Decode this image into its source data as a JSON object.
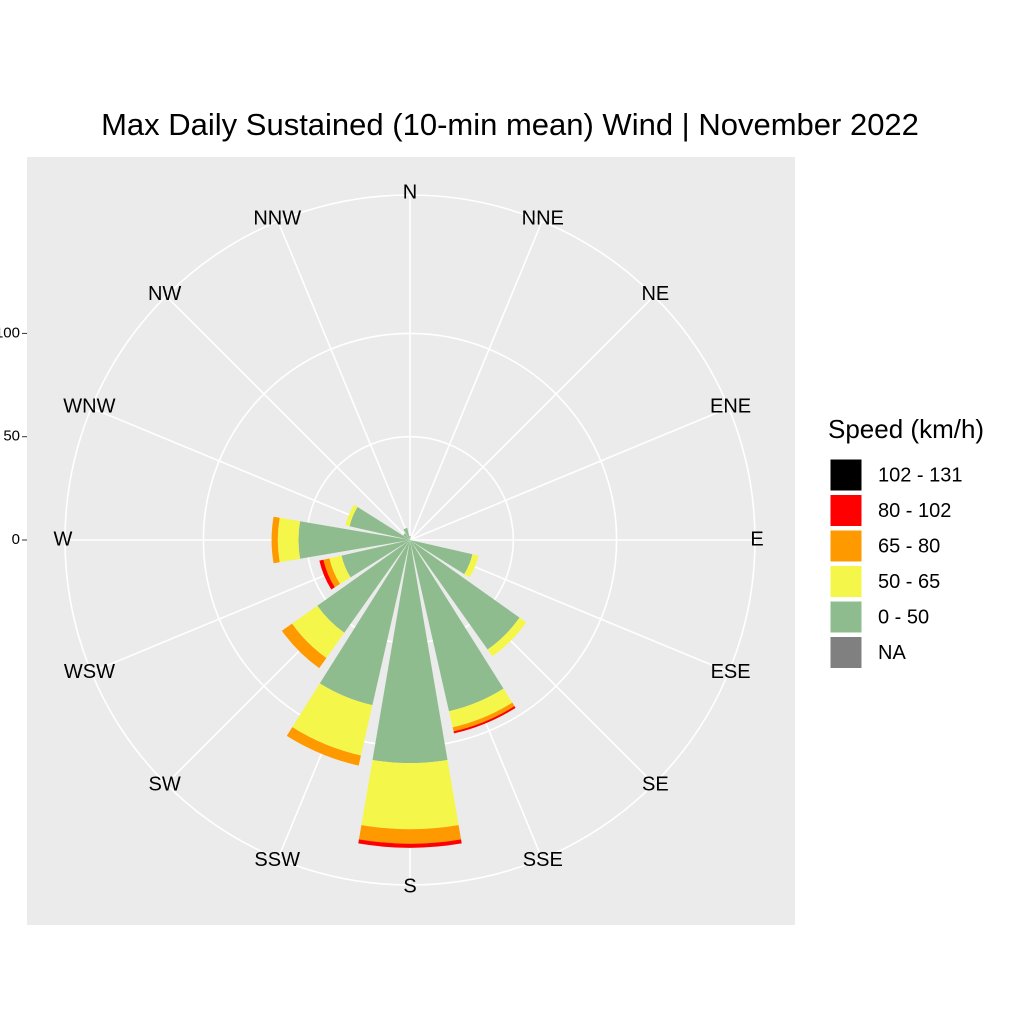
{
  "chart_data": {
    "type": "rose",
    "title": "Max Daily Sustained (10-min mean) Wind | November 2022",
    "legend_title": "Speed (km/h)",
    "categories": [
      "N",
      "NNE",
      "NE",
      "ENE",
      "E",
      "ESE",
      "SE",
      "SSE",
      "S",
      "SSW",
      "SW",
      "WSW",
      "W",
      "WNW",
      "NW",
      "NNW"
    ],
    "series": [
      {
        "name": "102 - 131",
        "color": "#000000",
        "values": [
          0,
          0,
          0,
          0,
          0,
          0,
          0,
          0,
          0,
          0,
          0,
          0,
          0,
          0,
          0,
          0
        ]
      },
      {
        "name": "80 - 102",
        "color": "#ff0000",
        "values": [
          0,
          0,
          0,
          0,
          0,
          0,
          0,
          1,
          2,
          0,
          0,
          2,
          0,
          0,
          0,
          0
        ]
      },
      {
        "name": "65 - 80",
        "color": "#ff9900",
        "values": [
          0,
          0,
          0,
          0,
          0,
          0,
          0,
          2,
          7,
          5,
          6,
          3,
          3,
          0,
          0,
          0
        ]
      },
      {
        "name": "50 - 65",
        "color": "#f4f74a",
        "values": [
          0,
          0,
          0,
          0,
          0,
          3,
          4,
          8,
          32,
          25,
          15,
          6,
          10,
          2,
          0,
          0
        ]
      },
      {
        "name": "0 - 50",
        "color": "#8fbc8f",
        "values": [
          2,
          0,
          0,
          0,
          0,
          31,
          65,
          85,
          108,
          82,
          55,
          34,
          54,
          30,
          4,
          6
        ]
      },
      {
        "name": "NA",
        "color": "#808080",
        "values": [
          0,
          0,
          0,
          0,
          0,
          0,
          0,
          0,
          0,
          0,
          0,
          0,
          0,
          0,
          0,
          0
        ]
      }
    ],
    "ylim": [
      0,
      167
    ],
    "yticks": [
      0,
      50,
      100
    ],
    "grid": true,
    "legend": "right"
  }
}
